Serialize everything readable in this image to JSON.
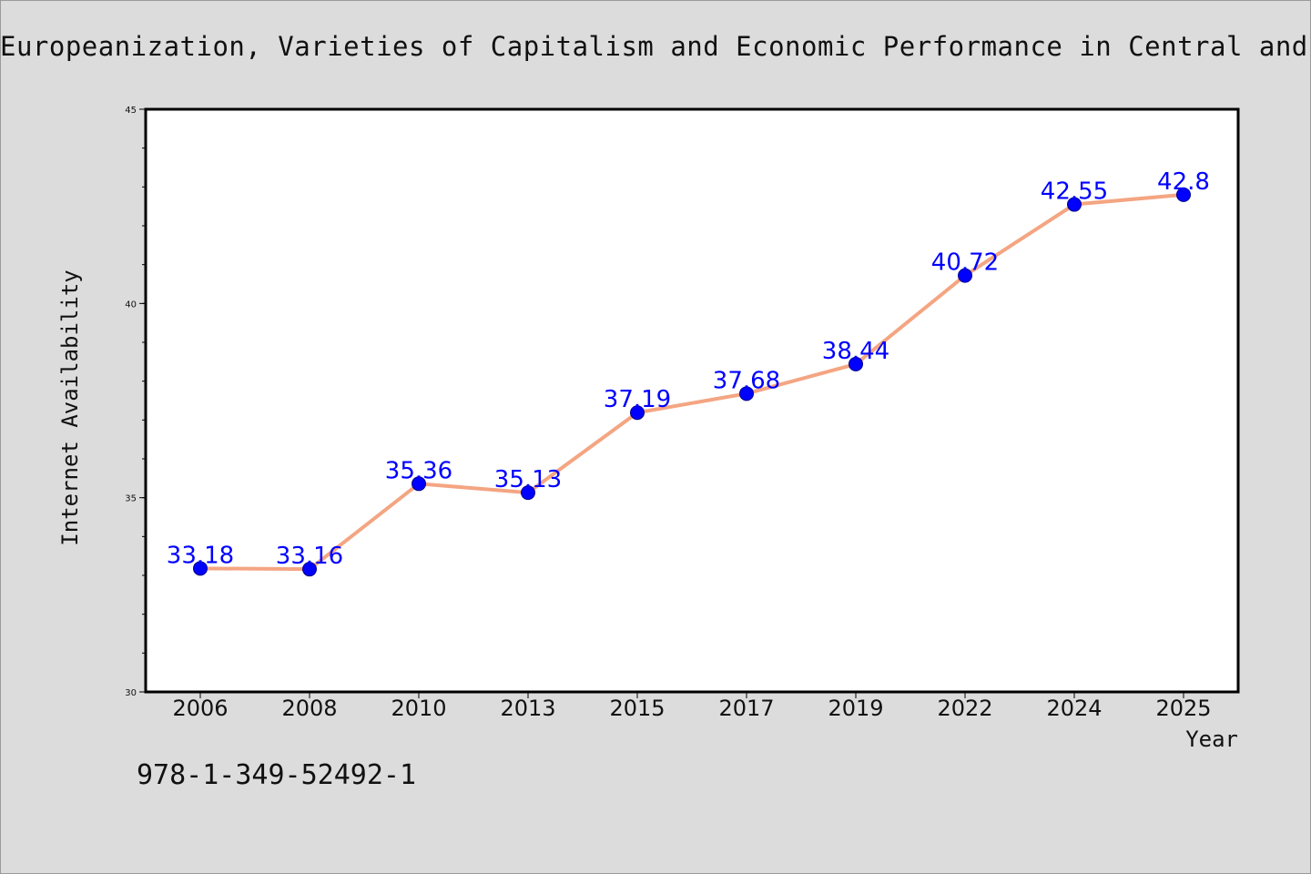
{
  "header": {
    "title": "Europeanization, Varieties of Capitalism and Economic Performance in Central and"
  },
  "footer": {
    "isbn": "978-1-349-52492-1"
  },
  "chart_data": {
    "type": "line",
    "title": "Europeanization, Varieties of Capitalism and Economic Performance in Central and",
    "xlabel": "Year",
    "ylabel": "Internet Availability",
    "categories": [
      "2006",
      "2008",
      "2010",
      "2013",
      "2015",
      "2017",
      "2019",
      "2022",
      "2024",
      "2025"
    ],
    "series": [
      {
        "values": [
          33.18,
          33.16,
          35.36,
          35.13,
          37.19,
          37.68,
          38.44,
          40.72,
          42.55,
          42.8
        ],
        "labels": [
          "33.18",
          "33.16",
          "35.36",
          "35.13",
          "37.19",
          "37.68",
          "38.44",
          "40.72",
          "42.55",
          "42.8"
        ]
      }
    ],
    "ylim": [
      30,
      45
    ],
    "yticks": [
      "30",
      "35",
      "40",
      "45"
    ],
    "grid": false,
    "legend": "none",
    "colors": {
      "line": "#f4a582",
      "marker": "#0000ff",
      "marker_edge": "#00008b",
      "label": "#0000ff",
      "plot_bg": "#ffffff",
      "figure_bg": "#dcdcdc"
    }
  }
}
